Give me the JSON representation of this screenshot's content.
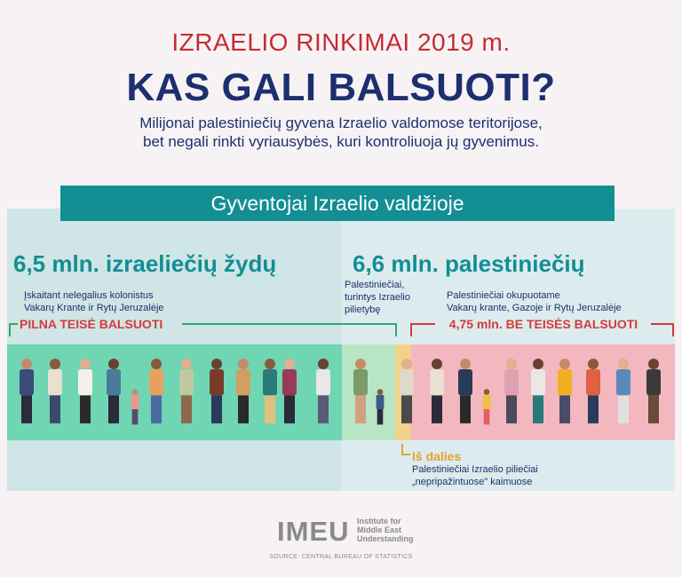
{
  "header": {
    "kicker": "IZRAELIO RINKIMAI 2019 m.",
    "headline": "KAS GALI BALSUOTI?",
    "subtitle_line1": "Milijonai palestiniečių gyvena Izraelio valdomose teritorijose,",
    "subtitle_line2": "bet negali rinkti vyriausybės, kuri kontroliuoja jų gyvenimus."
  },
  "banner": "Gyventojai Izraelio valdžioje",
  "left": {
    "headline": "6,5 mln. izraeliečių žydų",
    "note_line1": "Įskaitant nelegalius kolonistus",
    "note_line2": "Vakarų Krante ir Rytų Jeruzalėje",
    "bracket": "PILNA TEISĖ BALSUOTI"
  },
  "right": {
    "headline": "6,6 mln. palestiniečių",
    "citizens_line1": "Palestiniečiai,",
    "citizens_line2": "turintys Izraelio",
    "citizens_line3": "pilietybę",
    "occupied_line1": "Palestiniečiai okupuotame",
    "occupied_line2": "Vakarų krante, Gazoje ir Rytų Jeruzalėje",
    "bracket": "4,75 mln. BE TEISĖS BALSUOTI"
  },
  "partial": {
    "label": "Iš dalies",
    "note_line1": "Palestiniečiai Izraelio piliečiai",
    "note_line2": "„nepripažintuose\" kaimuose"
  },
  "logo": {
    "name": "IMEU",
    "sub_line1": "Institute for",
    "sub_line2": "Middle East",
    "sub_line3": "Understanding"
  },
  "source": "SOURCE: CENTRAL BUREAU OF STATISTICS",
  "colors": {
    "red": "#c62b33",
    "navy": "#1d2f6e",
    "teal": "#138e93",
    "green_band": "#6fd5b3",
    "pink_band": "#f2b7bf",
    "bracket_green": "#2fa86f",
    "bracket_red": "#d63a3a",
    "partial_orange": "#e8a030"
  }
}
